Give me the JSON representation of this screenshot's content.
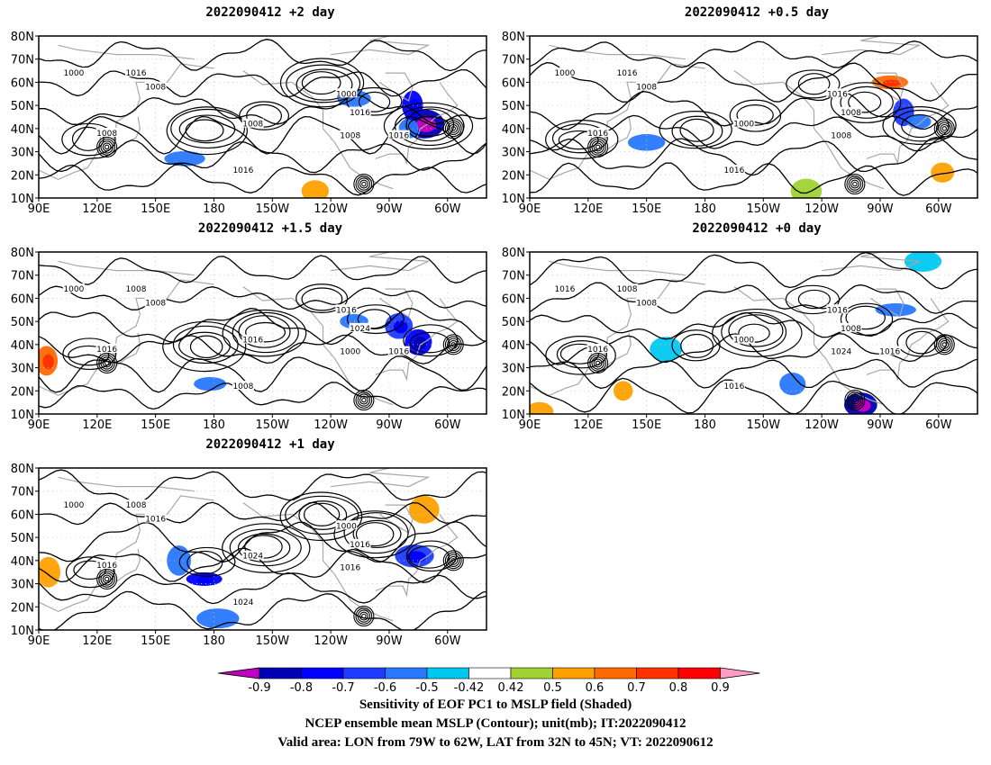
{
  "panels": [
    {
      "id": "p1",
      "title": "2022090412 +2 day",
      "contour_labels": [
        "1000",
        "1008",
        "1016",
        "1008",
        "1008",
        "1016",
        "1000",
        "1008",
        "1016",
        "1016"
      ],
      "blobs": [
        {
          "lon": -72,
          "lat": 42,
          "v": -0.85
        },
        {
          "lon": -80,
          "lat": 40,
          "v": -0.55
        },
        {
          "lon": 165,
          "lat": 27,
          "v": -0.5
        },
        {
          "lon": -128,
          "lat": 13,
          "v": 0.6
        },
        {
          "lon": -108,
          "lat": 53,
          "v": -0.5
        },
        {
          "lon": -78,
          "lat": 50,
          "v": -0.7
        }
      ]
    },
    {
      "id": "p2",
      "title": "2022090412 +0.5 day",
      "contour_labels": [
        "1000",
        "1008",
        "1016",
        "1016",
        "1000",
        "1008",
        "1016",
        "1008",
        "1016"
      ],
      "blobs": [
        {
          "lon": -78,
          "lat": 47,
          "v": -0.6
        },
        {
          "lon": -85,
          "lat": 60,
          "v": 0.7
        },
        {
          "lon": -70,
          "lat": 43,
          "v": -0.5
        },
        {
          "lon": 150,
          "lat": 34,
          "v": -0.5
        },
        {
          "lon": -128,
          "lat": 13,
          "v": 0.5
        },
        {
          "lon": -58,
          "lat": 21,
          "v": 0.6
        }
      ]
    },
    {
      "id": "p3",
      "title": "2022090412 +1.5 day",
      "contour_labels": [
        "1000",
        "1008",
        "1008",
        "1016",
        "1016",
        "1024",
        "1016",
        "1000",
        "1008",
        "1016"
      ],
      "blobs": [
        {
          "lon": -75,
          "lat": 41,
          "v": -0.75
        },
        {
          "lon": -85,
          "lat": 48,
          "v": -0.65
        },
        {
          "lon": 178,
          "lat": 23,
          "v": -0.55
        },
        {
          "lon": 94,
          "lat": 33,
          "v": 0.7
        },
        {
          "lon": -108,
          "lat": 50,
          "v": -0.5
        }
      ]
    },
    {
      "id": "p4",
      "title": "2022090412 +0 day",
      "contour_labels": [
        "1016",
        "1008",
        "1008",
        "1016",
        "1000",
        "1008",
        "1016",
        "1024",
        "1016",
        "1016"
      ],
      "blobs": [
        {
          "lon": -100,
          "lat": 14,
          "v": -0.8
        },
        {
          "lon": 138,
          "lat": 20,
          "v": 0.6
        },
        {
          "lon": -82,
          "lat": 55,
          "v": -0.5
        },
        {
          "lon": 160,
          "lat": 38,
          "v": -0.45
        },
        {
          "lon": -135,
          "lat": 23,
          "v": -0.5
        },
        {
          "lon": 95,
          "lat": 11,
          "v": 0.6
        },
        {
          "lon": -68,
          "lat": 76,
          "v": -0.45
        }
      ]
    },
    {
      "id": "p5",
      "title": "2022090412 +1 day",
      "contour_labels": [
        "1000",
        "1016",
        "1008",
        "1016",
        "1024",
        "1016",
        "1000",
        "1016",
        "1024"
      ],
      "blobs": [
        {
          "lon": -77,
          "lat": 42,
          "v": -0.65
        },
        {
          "lon": 175,
          "lat": 32,
          "v": -0.7
        },
        {
          "lon": 162,
          "lat": 40,
          "v": -0.55
        },
        {
          "lon": 182,
          "lat": 15,
          "v": -0.5
        },
        {
          "lon": 95,
          "lat": 35,
          "v": 0.6
        },
        {
          "lon": -72,
          "lat": 62,
          "v": 0.6
        }
      ]
    }
  ],
  "axes": {
    "lat_ticks": [
      "10N",
      "20N",
      "30N",
      "40N",
      "50N",
      "60N",
      "70N",
      "80N"
    ],
    "lon_ticks": [
      "90E",
      "120E",
      "150E",
      "180",
      "150W",
      "120W",
      "90W",
      "60W"
    ]
  },
  "colorbar": {
    "levels": [
      "-0.9",
      "-0.8",
      "-0.7",
      "-0.6",
      "-0.5",
      "-0.42",
      "0.42",
      "0.5",
      "0.6",
      "0.7",
      "0.8",
      "0.9"
    ],
    "colors": [
      "#c000c0",
      "#0000b4",
      "#0000ff",
      "#1e3cff",
      "#2878ff",
      "#00c8f0",
      "#ffffff",
      "#a0d232",
      "#ffa000",
      "#ff6a00",
      "#ff3200",
      "#ff0000",
      "#ff9cc8"
    ]
  },
  "captions": {
    "line1": "Sensitivity of EOF PC1 to MSLP field (Shaded)",
    "line2": "NCEP ensemble mean MSLP (Contour); unit(mb); IT:2022090412",
    "line3": "Valid area: LON from 79W to 62W, LAT from 32N to 45N; VT: 2022090612"
  },
  "chart_data": [
    {
      "type": "heatmap",
      "title": "2022090412 +2 day",
      "lon_range": [
        "90E",
        "40W"
      ],
      "lat_range": [
        10,
        80
      ]
    },
    {
      "type": "heatmap",
      "title": "2022090412 +0.5 day",
      "lon_range": [
        "90E",
        "40W"
      ],
      "lat_range": [
        10,
        80
      ]
    },
    {
      "type": "heatmap",
      "title": "2022090412 +1.5 day",
      "lon_range": [
        "90E",
        "40W"
      ],
      "lat_range": [
        10,
        80
      ]
    },
    {
      "type": "heatmap",
      "title": "2022090412 +0 day",
      "lon_range": [
        "90E",
        "40W"
      ],
      "lat_range": [
        10,
        80
      ]
    },
    {
      "type": "heatmap",
      "title": "2022090412 +1 day",
      "lon_range": [
        "90E",
        "40W"
      ],
      "lat_range": [
        10,
        80
      ]
    }
  ]
}
